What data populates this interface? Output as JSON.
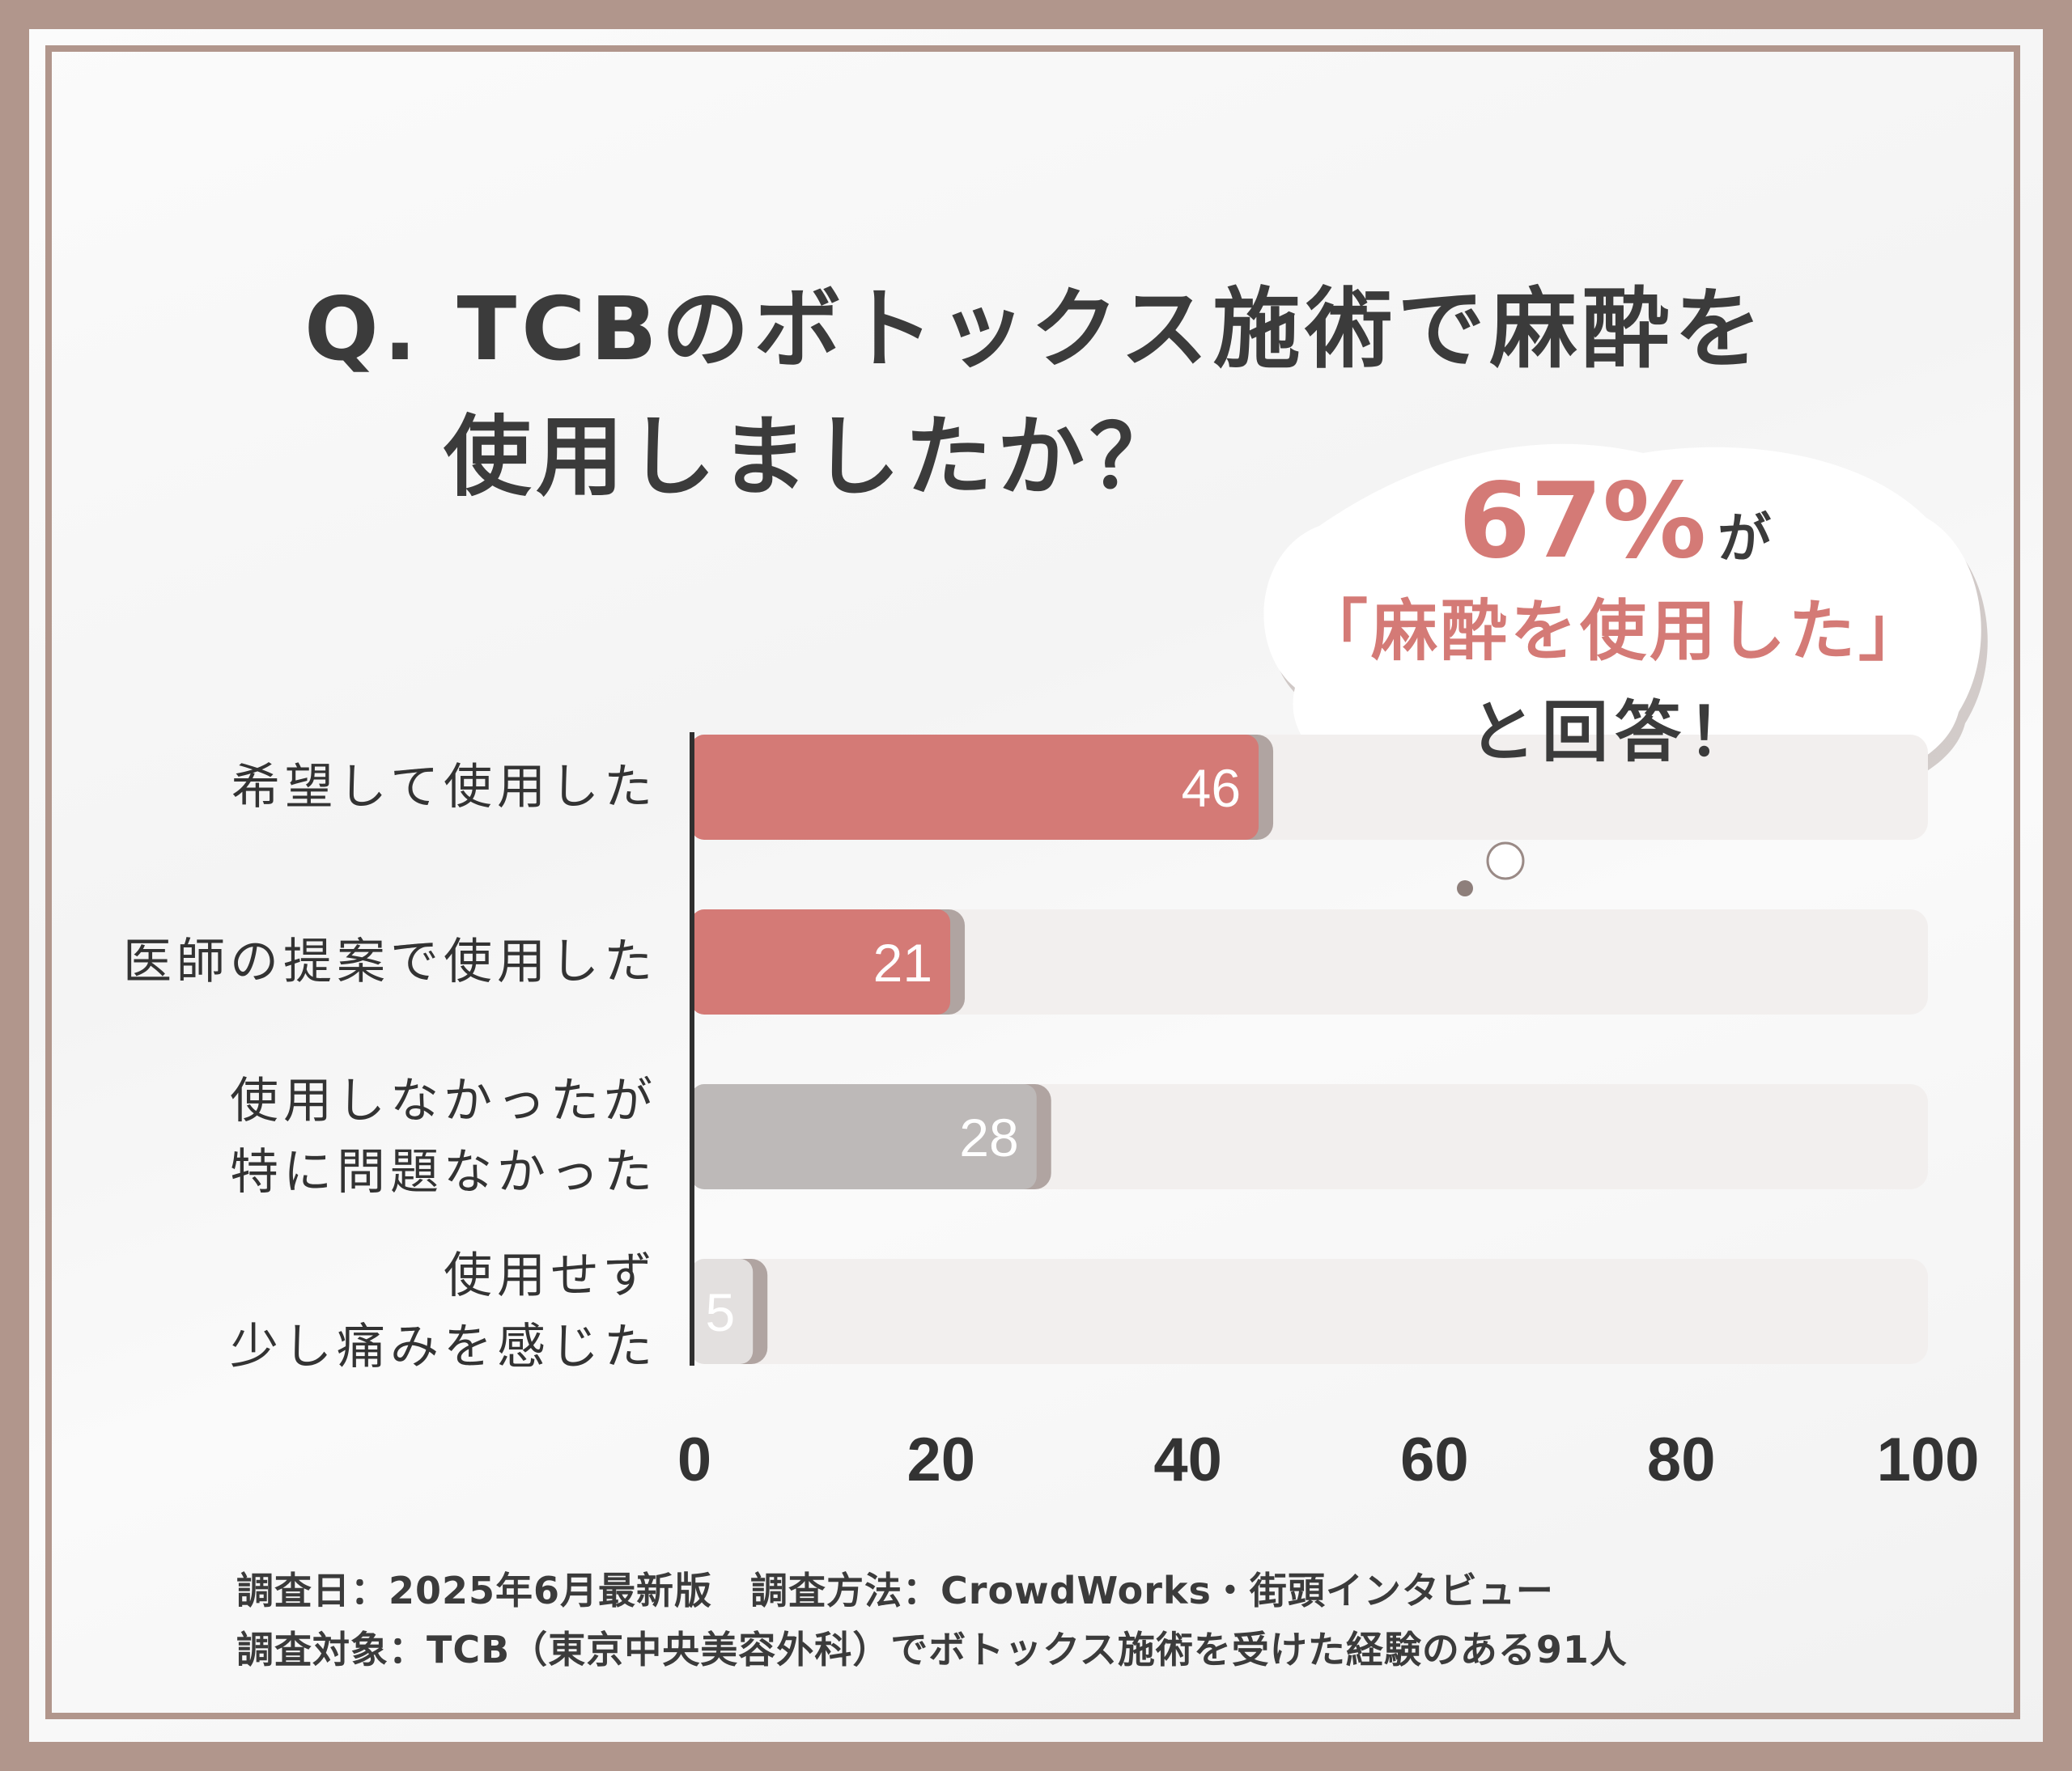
{
  "title": {
    "line1": "Q. TCBのボトックス施術で麻酔を",
    "line2": "使用しましたか？"
  },
  "callout": {
    "percent": "67%",
    "suffix": "が",
    "quote": "「麻酔を使用した」",
    "tail": "と回答！"
  },
  "footer": {
    "line1": "調査日：2025年6月最新版　調査方法：CrowdWorks・街頭インタビュー",
    "line2": "調査対象：TCB（東京中央美容外科）でボトックス施術を受けた経験のある91人"
  },
  "colors": {
    "frame": "#b1968c",
    "accent": "#d47a76",
    "gray": "#bdb9b8",
    "light_gray": "#e3e0df",
    "track": "#f2efee"
  },
  "chart_data": {
    "type": "bar",
    "orientation": "horizontal",
    "categories": [
      "希望して使用した",
      "医師の提案で使用した",
      "使用しなかったが\n特に問題なかった",
      "使用せず\n少し痛みを感じた"
    ],
    "values": [
      46,
      21,
      28,
      5
    ],
    "bar_colors": [
      "#d47a76",
      "#d47a76",
      "#bdb9b8",
      "#e3e0df"
    ],
    "xlim": [
      0,
      100
    ],
    "xticks": [
      "0",
      "20",
      "40",
      "60",
      "80",
      "100"
    ],
    "xlabel": "",
    "ylabel": "",
    "grid": false
  }
}
